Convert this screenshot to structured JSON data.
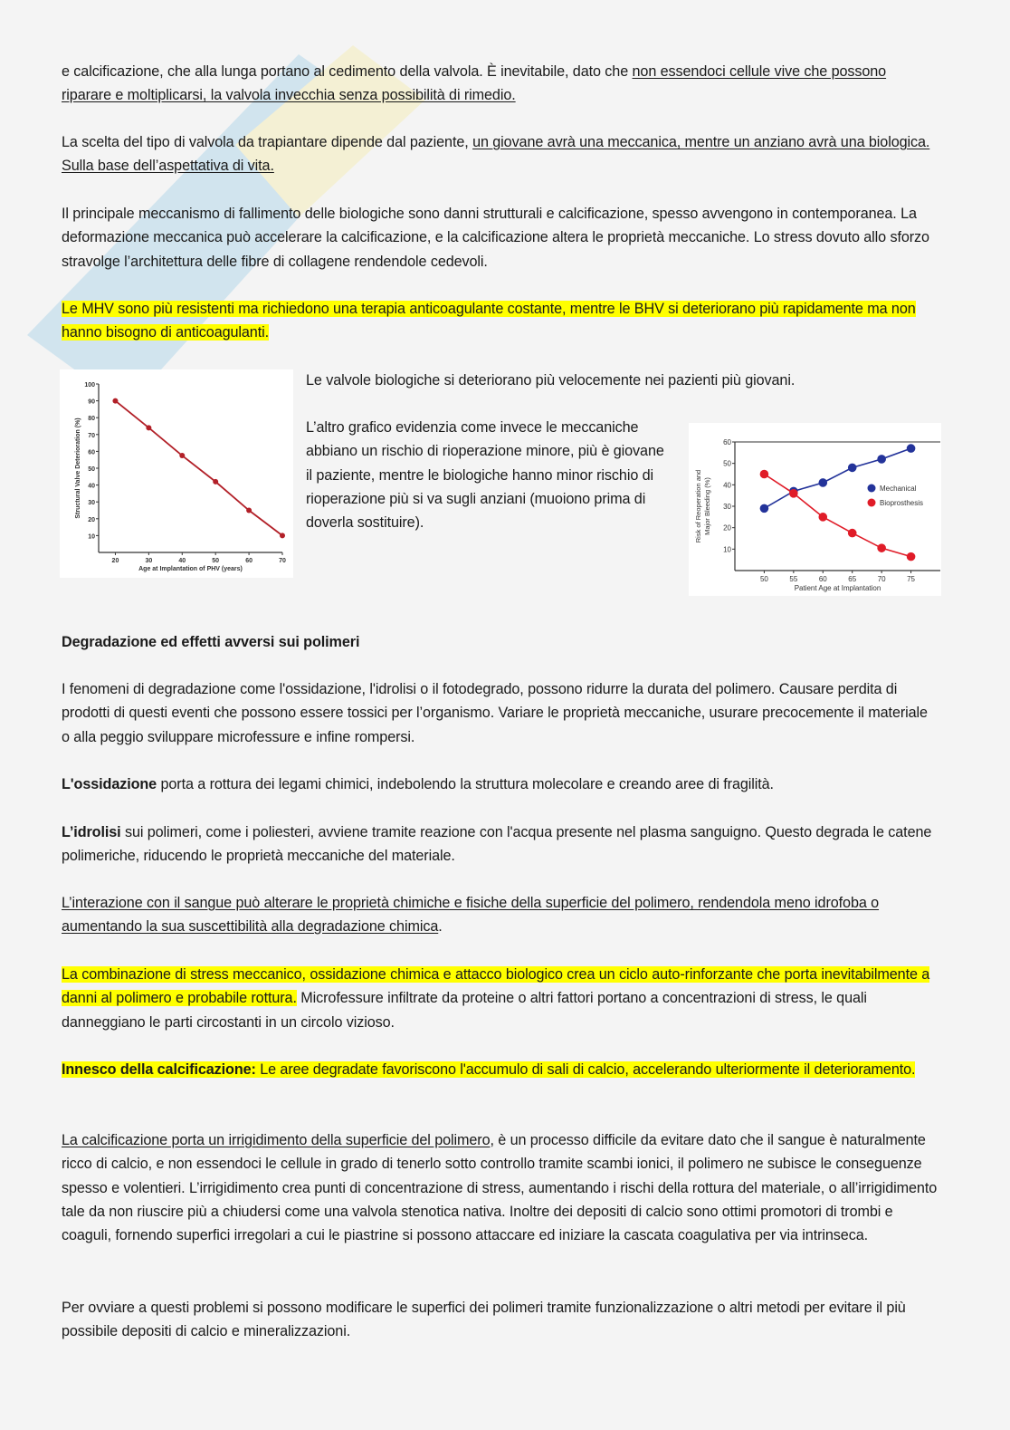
{
  "paragraphs": [
    {
      "id": "p1",
      "segments": [
        {
          "t": "e calcificazione, che alla lunga portano al cedimento della valvola. È inevitabile, dato che "
        },
        {
          "t": "non essendoci cellule vive che possono riparare e moltiplicarsi, la valvola invecchia senza possibilità di rimedio.",
          "u": true
        }
      ]
    },
    {
      "id": "p2",
      "segments": [
        {
          "t": "La scelta del tipo di valvola da trapiantare dipende dal paziente, "
        },
        {
          "t": "un giovane avrà una meccanica, mentre un anziano avrà una biologica. Sulla base dell’aspettativa di vita.",
          "u": true
        }
      ]
    },
    {
      "id": "p3",
      "segments": [
        {
          "t": "Il principale meccanismo di fallimento delle biologiche sono danni strutturali e calcificazione, spesso avvengono in contemporanea. La deformazione meccanica può accelerare la calcificazione, e la calcificazione altera le proprietà meccaniche. Lo stress dovuto allo sforzo stravolge l’architettura delle fibre di collagene rendendole cedevoli."
        }
      ]
    },
    {
      "id": "p4",
      "segments": [
        {
          "t": "Le MHV sono più resistenti ma richiedono una terapia anticoagulante costante, mentre le BHV si deteriorano più rapidamente ma non hanno bisogno di anticoagulanti.",
          "h": true
        }
      ]
    },
    {
      "id": "p5",
      "segments": [
        {
          "t": "Le valvole biologiche si deteriorano più velocemente nei pazienti più giovani."
        }
      ]
    },
    {
      "id": "p6",
      "segments": [
        {
          "t": "L’altro grafico evidenzia come invece le meccaniche abbiano un rischio di rioperazione minore, più è giovane il paziente, mentre le biologiche hanno minor rischio di rioperazione più si va sugli anziani (muoiono prima di doverla sostituire)."
        }
      ]
    },
    {
      "id": "p7",
      "segments": [
        {
          "t": "Degradazione ed effetti avversi sui polimeri",
          "b": true
        }
      ]
    },
    {
      "id": "p8",
      "segments": [
        {
          "t": "I fenomeni di degradazione come l'ossidazione, l'idrolisi o il fotodegrado, possono ridurre la durata del polimero. Causare perdita di prodotti di questi eventi che possono essere tossici per l’organismo. Variare le proprietà meccaniche, usurare precocemente il materiale o alla peggio sviluppare microfessure e infine rompersi."
        }
      ]
    },
    {
      "id": "p9",
      "segments": [
        {
          "t": "L'ossidazione",
          "b": true
        },
        {
          "t": " porta a rottura dei legami chimici, indebolendo la struttura molecolare e creando aree di fragilità."
        }
      ]
    },
    {
      "id": "p10",
      "segments": [
        {
          "t": "L’idrolisi",
          "b": true
        },
        {
          "t": " sui polimeri, come i poliesteri, avviene tramite reazione con l'acqua presente nel plasma sanguigno. Questo degrada le catene polimeriche, riducendo le proprietà meccaniche del materiale."
        }
      ]
    },
    {
      "id": "p11",
      "segments": [
        {
          "t": "L’interazione con il sangue può alterare le proprietà chimiche e fisiche della superficie del polimero, rendendola meno idrofoba o aumentando la sua suscettibilità alla degradazione chimica",
          "u": true
        },
        {
          "t": "."
        }
      ]
    },
    {
      "id": "p12",
      "segments": [
        {
          "t": "La combinazione di stress meccanico, ossidazione chimica e attacco biologico crea un ciclo auto-rinforzante che porta inevitabilmente a danni al polimero e probabile rottura.",
          "h": true
        },
        {
          "t": " Microfessure infiltrate da proteine o altri fattori portano a concentrazioni di stress, le quali danneggiano le parti circostanti in un circolo vizioso."
        }
      ]
    },
    {
      "id": "p13",
      "segments": [
        {
          "t": "Innesco della calcificazione:",
          "b": true,
          "h": true
        },
        {
          "t": " Le aree degradate favoriscono l'accumulo di sali di calcio, accelerando ulteriormente il deterioramento.",
          "h": true
        }
      ]
    },
    {
      "id": "p14",
      "segments": [
        {
          "t": "La calcificazione porta un irrigidimento della superficie del polimero",
          "u": true
        },
        {
          "t": ", è un processo difficile da evitare dato che il sangue è naturalmente ricco di calcio, e non essendoci le cellule in grado di tenerlo sotto controllo tramite scambi ionici, il polimero ne subisce le conseguenze spesso e volentieri. L’irrigidimento crea punti di concentrazione di stress, aumentando i rischi della rottura del materiale, o all’irrigidimento tale da non riuscire più a chiudersi come una valvola stenotica nativa. Inoltre dei depositi di calcio sono ottimi promotori di trombi e coaguli, fornendo superfici irregolari a cui le piastrine si possono attaccare ed iniziare la cascata coagulativa per via intrinseca."
        }
      ]
    },
    {
      "id": "p15",
      "segments": [
        {
          "t": "Per ovviare a questi problemi si possono modificare le superfici dei polimeri tramite funzionalizzazione o altri metodi per evitare il più possibile depositi di calcio e mineralizzazioni."
        }
      ]
    }
  ],
  "colors": {
    "highlight": "#ffff00",
    "series_red": "#c8202a",
    "series_blue": "#2a3c9a",
    "series_red_light": "#e8202a"
  },
  "chart_data": [
    {
      "type": "line",
      "xlabel": "Age at Implantation of PHV (years)",
      "ylabel": "Structural Valve Deterioration (%)",
      "xlim": [
        15,
        70
      ],
      "ylim": [
        0,
        100
      ],
      "xticks": [
        20,
        30,
        40,
        50,
        60,
        70
      ],
      "yticks": [
        10,
        20,
        30,
        40,
        50,
        60,
        70,
        80,
        90,
        100
      ],
      "grid": false,
      "series": [
        {
          "x": [
            20,
            30,
            40,
            50,
            60,
            70
          ],
          "values": [
            90,
            74,
            57.5,
            42,
            25,
            10
          ],
          "color": "#b22028"
        }
      ]
    },
    {
      "type": "line",
      "xlabel": "Patient Age at Implantation",
      "ylabel": "Risk of Reoperation and Major Bleeding (%)",
      "ylabel_lines": [
        "Risk of Reoperation and",
        "Major Bleeding (%)"
      ],
      "xlim": [
        45,
        80
      ],
      "ylim": [
        0,
        60
      ],
      "xticks": [
        50,
        55,
        60,
        65,
        70,
        75
      ],
      "yticks": [
        10,
        20,
        30,
        40,
        50,
        60
      ],
      "grid": false,
      "legend_position": "right",
      "series": [
        {
          "name": "Mechanical",
          "x": [
            50,
            55,
            60,
            65,
            70,
            75
          ],
          "values": [
            29,
            37,
            41,
            48,
            52,
            57
          ],
          "color": "#23339a"
        },
        {
          "name": "Bioprosthesis",
          "x": [
            50,
            55,
            60,
            65,
            70,
            75
          ],
          "values": [
            45,
            36,
            25,
            17.5,
            10.5,
            6.5
          ],
          "color": "#e01c28"
        }
      ]
    }
  ]
}
